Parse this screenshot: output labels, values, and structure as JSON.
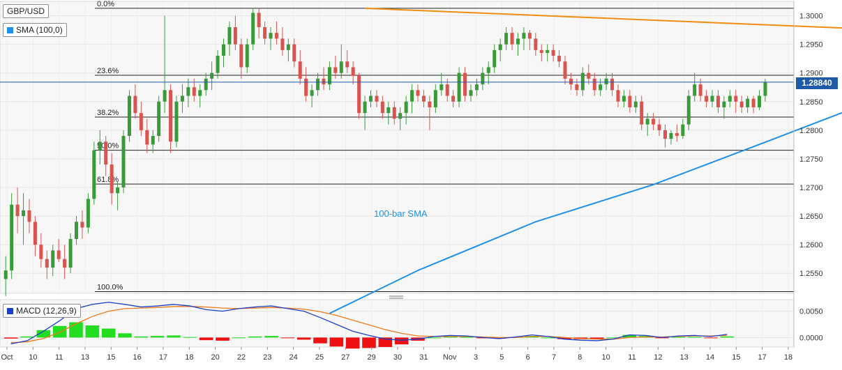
{
  "header": {
    "symbol": "GBP/USD",
    "indicator": "SMA (100,0)",
    "price_badge": "1.28840",
    "macd_label": "MACD (12,26,9)"
  },
  "colors": {
    "up": "#3a9a3a",
    "down": "#d9534f",
    "sma": "#1e90e8",
    "trend": "#f28c0f",
    "macd_line": "#1c3fc7",
    "signal_line": "#f07a1a",
    "hist_pos": "#22dd22",
    "hist_neg": "#ee1111",
    "price_line": "#1d5aa8"
  },
  "chart_data": [
    {
      "type": "candlestick",
      "title": "GBP/USD",
      "x_ticks": [
        "Oct",
        "10",
        "11",
        "13",
        "15",
        "16",
        "17",
        "18",
        "20",
        "22",
        "23",
        "24",
        "25",
        "27",
        "29",
        "30",
        "31",
        "Nov",
        "3",
        "5",
        "6",
        "7",
        "8",
        "10",
        "11",
        "12",
        "13",
        "14",
        "15",
        "17",
        "18"
      ],
      "y_ticks": [
        "1.3000",
        "1.2950",
        "1.2900",
        "1.2850",
        "1.2800",
        "1.2750",
        "1.2700",
        "1.2650",
        "1.2600",
        "1.2550"
      ],
      "ylim": [
        1.2515,
        1.3025
      ],
      "current_price": 1.2884,
      "fibonacci": [
        {
          "label": "0.0%",
          "value": 1.3013
        },
        {
          "label": "23.6%",
          "value": 1.2896
        },
        {
          "label": "38.2%",
          "value": 1.2823
        },
        {
          "label": "50.0%",
          "value": 1.2765
        },
        {
          "label": "61.8%",
          "value": 1.2706
        },
        {
          "label": "100.0%",
          "value": 1.2518
        }
      ],
      "trendline": {
        "start": [
          61,
          1.3013
        ],
        "end": [
          261,
          1.2928
        ]
      },
      "sma_label": "100-bar SMA",
      "sma_points": [
        [
          55,
          1.248
        ],
        [
          70,
          1.2555
        ],
        [
          90,
          1.264
        ],
        [
          110,
          1.2705
        ],
        [
          130,
          1.2783
        ],
        [
          150,
          1.2862
        ],
        [
          165,
          1.2897
        ],
        [
          185,
          1.287
        ],
        [
          200,
          1.2891
        ],
        [
          220,
          1.2888
        ],
        [
          238,
          1.287
        ],
        [
          260,
          1.2885
        ]
      ],
      "candles": [
        [
          1.254,
          1.258,
          1.251,
          1.2555
        ],
        [
          1.2555,
          1.269,
          1.254,
          1.267
        ],
        [
          1.267,
          1.27,
          1.262,
          1.265
        ],
        [
          1.265,
          1.269,
          1.26,
          1.266
        ],
        [
          1.266,
          1.268,
          1.262,
          1.264
        ],
        [
          1.264,
          1.265,
          1.258,
          1.26
        ],
        [
          1.26,
          1.262,
          1.256,
          1.2575
        ],
        [
          1.2575,
          1.259,
          1.254,
          1.256
        ],
        [
          1.256,
          1.26,
          1.2545,
          1.259
        ],
        [
          1.259,
          1.261,
          1.257,
          1.2575
        ],
        [
          1.2575,
          1.26,
          1.254,
          1.256
        ],
        [
          1.256,
          1.262,
          1.255,
          1.261
        ],
        [
          1.261,
          1.265,
          1.26,
          1.264
        ],
        [
          1.264,
          1.266,
          1.261,
          1.263
        ],
        [
          1.263,
          1.269,
          1.262,
          1.268
        ],
        [
          1.268,
          1.278,
          1.267,
          1.2765
        ],
        [
          1.2765,
          1.28,
          1.274,
          1.278
        ],
        [
          1.278,
          1.279,
          1.272,
          1.274
        ],
        [
          1.274,
          1.276,
          1.267,
          1.269
        ],
        [
          1.269,
          1.271,
          1.266,
          1.27
        ],
        [
          1.27,
          1.28,
          1.269,
          1.279
        ],
        [
          1.279,
          1.287,
          1.278,
          1.286
        ],
        [
          1.286,
          1.288,
          1.282,
          1.283
        ],
        [
          1.283,
          1.285,
          1.279,
          1.28
        ],
        [
          1.28,
          1.282,
          1.276,
          1.2775
        ],
        [
          1.2775,
          1.28,
          1.276,
          1.279
        ],
        [
          1.279,
          1.286,
          1.278,
          1.285
        ],
        [
          1.285,
          1.3,
          1.283,
          1.287
        ],
        [
          1.287,
          1.288,
          1.276,
          1.278
        ],
        [
          1.278,
          1.286,
          1.277,
          1.285
        ],
        [
          1.285,
          1.288,
          1.283,
          1.286
        ],
        [
          1.286,
          1.289,
          1.284,
          1.2875
        ],
        [
          1.2875,
          1.289,
          1.285,
          1.286
        ],
        [
          1.286,
          1.288,
          1.284,
          1.287
        ],
        [
          1.287,
          1.29,
          1.286,
          1.289
        ],
        [
          1.289,
          1.292,
          1.287,
          1.29
        ],
        [
          1.29,
          1.294,
          1.289,
          1.293
        ],
        [
          1.293,
          1.296,
          1.291,
          1.295
        ],
        [
          1.295,
          1.299,
          1.293,
          1.298
        ],
        [
          1.298,
          1.3,
          1.294,
          1.295
        ],
        [
          1.295,
          1.296,
          1.289,
          1.291
        ],
        [
          1.291,
          1.296,
          1.29,
          1.295
        ],
        [
          1.295,
          1.3013,
          1.294,
          1.3005
        ],
        [
          1.3005,
          1.3013,
          1.296,
          1.298
        ],
        [
          1.298,
          1.299,
          1.295,
          1.296
        ],
        [
          1.296,
          1.298,
          1.294,
          1.297
        ],
        [
          1.297,
          1.299,
          1.295,
          1.296
        ],
        [
          1.296,
          1.298,
          1.293,
          1.294
        ],
        [
          1.294,
          1.296,
          1.292,
          1.295
        ],
        [
          1.295,
          1.296,
          1.291,
          1.292
        ],
        [
          1.292,
          1.294,
          1.288,
          1.289
        ],
        [
          1.289,
          1.291,
          1.285,
          1.286
        ],
        [
          1.286,
          1.288,
          1.284,
          1.287
        ],
        [
          1.287,
          1.29,
          1.286,
          1.289
        ],
        [
          1.289,
          1.291,
          1.287,
          1.288
        ],
        [
          1.288,
          1.292,
          1.287,
          1.291
        ],
        [
          1.291,
          1.293,
          1.289,
          1.29
        ],
        [
          1.29,
          1.295,
          1.289,
          1.292
        ],
        [
          1.292,
          1.294,
          1.29,
          1.291
        ],
        [
          1.291,
          1.292,
          1.288,
          1.2895
        ],
        [
          1.2895,
          1.29,
          1.282,
          1.283
        ],
        [
          1.283,
          1.286,
          1.28,
          1.285
        ],
        [
          1.285,
          1.287,
          1.284,
          1.286
        ],
        [
          1.286,
          1.287,
          1.284,
          1.285
        ],
        [
          1.285,
          1.286,
          1.282,
          1.283
        ],
        [
          1.283,
          1.285,
          1.281,
          1.284
        ],
        [
          1.284,
          1.285,
          1.281,
          1.282
        ],
        [
          1.282,
          1.284,
          1.28,
          1.283
        ],
        [
          1.283,
          1.286,
          1.281,
          1.285
        ],
        [
          1.285,
          1.288,
          1.283,
          1.287
        ],
        [
          1.287,
          1.288,
          1.285,
          1.286
        ],
        [
          1.286,
          1.287,
          1.284,
          1.285
        ],
        [
          1.285,
          1.286,
          1.28,
          1.284
        ],
        [
          1.284,
          1.288,
          1.283,
          1.287
        ],
        [
          1.287,
          1.29,
          1.286,
          1.288
        ],
        [
          1.288,
          1.289,
          1.285,
          1.286
        ],
        [
          1.286,
          1.287,
          1.284,
          1.285
        ],
        [
          1.285,
          1.291,
          1.284,
          1.29
        ],
        [
          1.29,
          1.291,
          1.285,
          1.286
        ],
        [
          1.286,
          1.288,
          1.285,
          1.287
        ],
        [
          1.287,
          1.289,
          1.286,
          1.288
        ],
        [
          1.288,
          1.291,
          1.287,
          1.29
        ],
        [
          1.29,
          1.292,
          1.288,
          1.291
        ],
        [
          1.291,
          1.295,
          1.29,
          1.294
        ],
        [
          1.294,
          1.296,
          1.292,
          1.295
        ],
        [
          1.295,
          1.298,
          1.294,
          1.297
        ],
        [
          1.297,
          1.298,
          1.294,
          1.295
        ],
        [
          1.295,
          1.297,
          1.293,
          1.296
        ],
        [
          1.296,
          1.298,
          1.294,
          1.297
        ],
        [
          1.297,
          1.2975,
          1.294,
          1.296
        ],
        [
          1.296,
          1.297,
          1.293,
          1.294
        ],
        [
          1.294,
          1.295,
          1.292,
          1.2935
        ],
        [
          1.2935,
          1.295,
          1.292,
          1.294
        ],
        [
          1.294,
          1.295,
          1.292,
          1.293
        ],
        [
          1.293,
          1.294,
          1.291,
          1.292
        ],
        [
          1.292,
          1.293,
          1.288,
          1.289
        ],
        [
          1.289,
          1.29,
          1.287,
          1.288
        ],
        [
          1.288,
          1.289,
          1.286,
          1.287
        ],
        [
          1.287,
          1.291,
          1.286,
          1.29
        ],
        [
          1.29,
          1.2915,
          1.288,
          1.289
        ],
        [
          1.289,
          1.29,
          1.286,
          1.287
        ],
        [
          1.287,
          1.289,
          1.286,
          1.288
        ],
        [
          1.288,
          1.29,
          1.287,
          1.289
        ],
        [
          1.289,
          1.29,
          1.286,
          1.287
        ],
        [
          1.287,
          1.288,
          1.284,
          1.285
        ],
        [
          1.285,
          1.287,
          1.284,
          1.286
        ],
        [
          1.286,
          1.287,
          1.283,
          1.284
        ],
        [
          1.284,
          1.286,
          1.283,
          1.285
        ],
        [
          1.285,
          1.286,
          1.28,
          1.281
        ],
        [
          1.281,
          1.283,
          1.279,
          1.282
        ],
        [
          1.282,
          1.283,
          1.28,
          1.281
        ],
        [
          1.281,
          1.282,
          1.279,
          1.28
        ],
        [
          1.28,
          1.281,
          1.277,
          1.2785
        ],
        [
          1.2785,
          1.28,
          1.2775,
          1.2795
        ],
        [
          1.2795,
          1.281,
          1.278,
          1.279
        ],
        [
          1.279,
          1.282,
          1.2785,
          1.281
        ],
        [
          1.281,
          1.287,
          1.28,
          1.286
        ],
        [
          1.286,
          1.29,
          1.285,
          1.288
        ],
        [
          1.288,
          1.289,
          1.285,
          1.286
        ],
        [
          1.286,
          1.287,
          1.284,
          1.285
        ],
        [
          1.285,
          1.287,
          1.284,
          1.286
        ],
        [
          1.286,
          1.287,
          1.283,
          1.284
        ],
        [
          1.284,
          1.286,
          1.282,
          1.285
        ],
        [
          1.285,
          1.287,
          1.284,
          1.286
        ],
        [
          1.286,
          1.287,
          1.283,
          1.285
        ],
        [
          1.285,
          1.286,
          1.283,
          1.284
        ],
        [
          1.284,
          1.286,
          1.283,
          1.2855
        ],
        [
          1.2855,
          1.286,
          1.283,
          1.284
        ],
        [
          1.284,
          1.287,
          1.2835,
          1.286
        ],
        [
          1.286,
          1.289,
          1.285,
          1.2884
        ]
      ]
    },
    {
      "type": "bar",
      "title": "MACD (12,26,9)",
      "y_ticks": [
        "0.0050",
        "0.0000"
      ],
      "ylim": [
        -0.0018,
        0.0072
      ],
      "macd": [
        -0.0012,
        -0.0006,
        0.0012,
        0.0032,
        0.0055,
        0.0063,
        0.0067,
        0.0063,
        0.0058,
        0.006,
        0.0063,
        0.006,
        0.0053,
        0.005,
        0.0055,
        0.0058,
        0.006,
        0.0055,
        0.005,
        0.0038,
        0.0025,
        0.0012,
        0.0004,
        -0.0003,
        -0.0005,
        -0.0003,
        0.0002,
        0.0004,
        0.0003,
        0.0,
        -0.0002,
        0.0001,
        0.0005,
        0.0002,
        -0.0003,
        -0.0005,
        -0.0006,
        -0.0003,
        0.0005,
        0.0004,
        0.0,
        0.0003,
        0.0004,
        0.0002,
        0.0006
      ],
      "signal": [
        -0.001,
        -0.0008,
        -0.0002,
        0.001,
        0.0026,
        0.004,
        0.005,
        0.0055,
        0.0056,
        0.0057,
        0.0059,
        0.0059,
        0.0058,
        0.0056,
        0.0055,
        0.0056,
        0.0057,
        0.0056,
        0.0054,
        0.0049,
        0.0042,
        0.0033,
        0.0024,
        0.0015,
        0.0008,
        0.0003,
        0.0002,
        0.0002,
        0.0002,
        0.0001,
        0.0,
        0.0,
        0.0002,
        0.0002,
        0.0,
        -0.0002,
        -0.0003,
        -0.0003,
        0.0,
        0.0001,
        0.0001,
        0.0002,
        0.0003,
        0.0003,
        0.0004
      ],
      "histogram": [
        -0.0002,
        0.0002,
        0.0014,
        0.0022,
        0.0029,
        0.0023,
        0.0017,
        0.0008,
        0.0002,
        0.0003,
        0.0004,
        0.0001,
        -0.0005,
        -0.0006,
        0.0,
        0.0002,
        0.0003,
        -0.0001,
        -0.0004,
        -0.0011,
        -0.0017,
        -0.0021,
        -0.002,
        -0.0018,
        -0.0013,
        -0.0006,
        0.0,
        0.0002,
        0.0001,
        -0.0001,
        -0.0002,
        0.0001,
        0.0003,
        0.0,
        -0.0003,
        -0.0003,
        -0.0003,
        0.0,
        0.0005,
        0.0003,
        -0.0001,
        0.0001,
        0.0001,
        -0.0001,
        0.0002
      ]
    }
  ]
}
